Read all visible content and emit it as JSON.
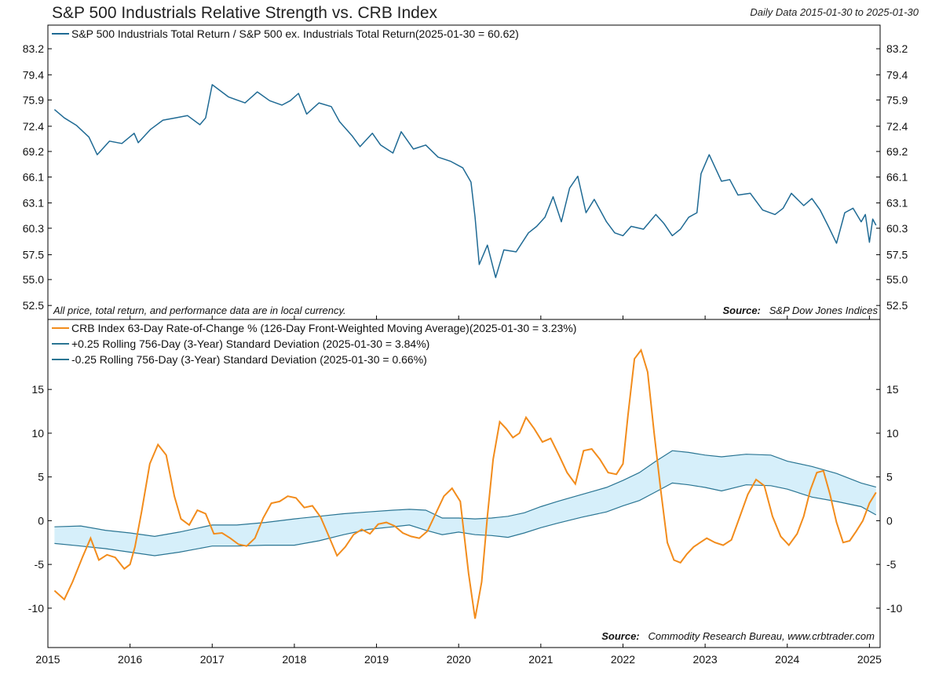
{
  "header": {
    "title": "S&P 500 Industrials Relative Strength vs. CRB Index",
    "date_range": "Daily Data 2015-01-30 to 2025-01-30"
  },
  "top_panel": {
    "note": "All price, total return, and performance data are in local currency.",
    "source_label": "Source:",
    "source_text": "S&P Dow Jones Indices"
  },
  "bottom_panel": {
    "source_label": "Source:",
    "source_text": "Commodity Research Bureau, www.crbtrader.com"
  },
  "colors": {
    "relative_strength": "#1f6a94",
    "crb_roc": "#f28c1c",
    "band_line": "#2a7593",
    "band_fill": "#d6effa"
  },
  "chart_data": [
    {
      "type": "line",
      "x_axis": "date",
      "y_scale": "log",
      "ylim": [
        51.2,
        86.8
      ],
      "y_ticks": [
        "52.5",
        "55.0",
        "57.5",
        "60.3",
        "63.1",
        "66.1",
        "69.2",
        "72.4",
        "75.9",
        "79.4",
        "83.2"
      ],
      "grid": false,
      "legend_position": "top-left",
      "series": [
        {
          "name": "S&P 500 Industrials Total Return / S&P 500 ex. Industrials Total Return(2025-01-30 = 60.62)",
          "x": [
            2015.08,
            2015.2,
            2015.35,
            2015.5,
            2015.6,
            2015.75,
            2015.9,
            2016.05,
            2016.1,
            2016.25,
            2016.4,
            2016.55,
            2016.7,
            2016.85,
            2016.92,
            2017.0,
            2017.2,
            2017.4,
            2017.55,
            2017.7,
            2017.85,
            2017.95,
            2018.05,
            2018.15,
            2018.3,
            2018.45,
            2018.55,
            2018.7,
            2018.8,
            2018.95,
            2019.05,
            2019.2,
            2019.3,
            2019.45,
            2019.6,
            2019.75,
            2019.9,
            2020.05,
            2020.15,
            2020.2,
            2020.25,
            2020.35,
            2020.45,
            2020.55,
            2020.7,
            2020.85,
            2020.95,
            2021.05,
            2021.15,
            2021.25,
            2021.35,
            2021.45,
            2021.55,
            2021.65,
            2021.8,
            2021.9,
            2022.0,
            2022.1,
            2022.25,
            2022.4,
            2022.5,
            2022.6,
            2022.7,
            2022.8,
            2022.9,
            2022.95,
            2023.05,
            2023.2,
            2023.3,
            2023.4,
            2023.55,
            2023.7,
            2023.85,
            2023.95,
            2024.05,
            2024.2,
            2024.3,
            2024.4,
            2024.5,
            2024.6,
            2024.7,
            2024.8,
            2024.9,
            2024.95,
            2025.0,
            2025.04,
            2025.08
          ],
          "y": [
            74.6,
            73.5,
            72.5,
            71.0,
            68.8,
            70.5,
            70.2,
            71.5,
            70.3,
            72.0,
            73.2,
            73.5,
            73.8,
            72.6,
            73.5,
            78.0,
            76.3,
            75.5,
            77.0,
            75.8,
            75.2,
            75.8,
            76.8,
            74.0,
            75.5,
            75.0,
            73.0,
            71.2,
            69.8,
            71.5,
            70.0,
            69.0,
            71.7,
            69.5,
            70.0,
            68.5,
            68.0,
            67.2,
            65.5,
            61.5,
            56.5,
            58.5,
            55.2,
            58.0,
            57.8,
            59.8,
            60.5,
            61.5,
            63.8,
            61.0,
            64.8,
            66.2,
            62.0,
            63.5,
            61.0,
            59.8,
            59.5,
            60.5,
            60.2,
            61.8,
            60.8,
            59.5,
            60.2,
            61.5,
            62.0,
            66.5,
            68.8,
            65.6,
            65.8,
            64.0,
            64.2,
            62.3,
            61.8,
            62.5,
            64.2,
            62.8,
            63.6,
            62.3,
            60.5,
            58.7,
            62.0,
            62.5,
            61.0,
            61.8,
            58.8,
            61.3,
            60.62
          ]
        }
      ]
    },
    {
      "type": "line",
      "x_axis": "date",
      "x_ticks": [
        "2015",
        "2016",
        "2017",
        "2018",
        "2019",
        "2020",
        "2021",
        "2022",
        "2023",
        "2024",
        "2025"
      ],
      "ylim": [
        -14.5,
        23
      ],
      "y_ticks": [
        "-10",
        "-5",
        "0",
        "5",
        "10",
        "15"
      ],
      "grid": false,
      "legend_position": "top-left",
      "band_between": [
        "+0.25 Rolling 756-Day (3-Year) Standard Deviation (2025-01-30 = 3.84%)",
        "-0.25 Rolling 756-Day (3-Year) Standard Deviation (2025-01-30 = 0.66%)"
      ],
      "series": [
        {
          "name": "CRB Index 63-Day Rate-of-Change % (126-Day Front-Weighted Moving Average)(2025-01-30 = 3.23%)",
          "x": [
            2015.08,
            2015.2,
            2015.3,
            2015.42,
            2015.52,
            2015.62,
            2015.72,
            2015.82,
            2015.93,
            2016.0,
            2016.06,
            2016.14,
            2016.24,
            2016.34,
            2016.44,
            2016.54,
            2016.62,
            2016.72,
            2016.82,
            2016.92,
            2017.02,
            2017.12,
            2017.22,
            2017.32,
            2017.42,
            2017.52,
            2017.62,
            2017.72,
            2017.82,
            2017.92,
            2018.02,
            2018.12,
            2018.22,
            2018.32,
            2018.42,
            2018.52,
            2018.62,
            2018.72,
            2018.82,
            2018.92,
            2019.02,
            2019.12,
            2019.22,
            2019.32,
            2019.42,
            2019.52,
            2019.62,
            2019.72,
            2019.82,
            2019.92,
            2020.02,
            2020.12,
            2020.2,
            2020.28,
            2020.35,
            2020.42,
            2020.5,
            2020.58,
            2020.66,
            2020.74,
            2020.82,
            2020.92,
            2021.02,
            2021.12,
            2021.22,
            2021.32,
            2021.42,
            2021.52,
            2021.62,
            2021.72,
            2021.82,
            2021.92,
            2022.0,
            2022.06,
            2022.14,
            2022.22,
            2022.3,
            2022.38,
            2022.46,
            2022.54,
            2022.62,
            2022.7,
            2022.78,
            2022.86,
            2022.94,
            2023.02,
            2023.12,
            2023.22,
            2023.32,
            2023.42,
            2023.52,
            2023.62,
            2023.72,
            2023.82,
            2023.92,
            2024.02,
            2024.12,
            2024.2,
            2024.28,
            2024.36,
            2024.44,
            2024.52,
            2024.6,
            2024.68,
            2024.76,
            2024.84,
            2024.92,
            2025.0,
            2025.08
          ],
          "y": [
            -8.0,
            -9.0,
            -7.0,
            -4.2,
            -2.0,
            -4.5,
            -3.9,
            -4.2,
            -5.5,
            -5.0,
            -3.0,
            1.0,
            6.5,
            8.7,
            7.5,
            2.8,
            0.2,
            -0.5,
            1.2,
            0.8,
            -1.5,
            -1.4,
            -2.0,
            -2.7,
            -2.9,
            -2.0,
            0.3,
            2.0,
            2.2,
            2.8,
            2.6,
            1.5,
            1.7,
            0.4,
            -1.8,
            -4.0,
            -3.0,
            -1.6,
            -1.0,
            -1.5,
            -0.4,
            -0.2,
            -0.6,
            -1.4,
            -1.8,
            -2.0,
            -1.2,
            0.8,
            2.8,
            3.7,
            2.2,
            -6.0,
            -11.2,
            -7.0,
            0.5,
            7.0,
            11.3,
            10.5,
            9.5,
            10.0,
            11.8,
            10.5,
            9.0,
            9.4,
            7.5,
            5.5,
            4.2,
            8.0,
            8.2,
            7.0,
            5.5,
            5.3,
            6.5,
            12.0,
            18.5,
            19.5,
            17.0,
            10.0,
            3.5,
            -2.5,
            -4.5,
            -4.8,
            -3.8,
            -3.0,
            -2.5,
            -2.0,
            -2.5,
            -2.8,
            -2.2,
            0.4,
            3.0,
            4.7,
            4.0,
            0.5,
            -1.8,
            -2.8,
            -1.5,
            0.5,
            3.5,
            5.5,
            5.7,
            3.0,
            -0.2,
            -2.5,
            -2.3,
            -1.2,
            0.0,
            2.0,
            3.23
          ]
        },
        {
          "name": "+0.25 Rolling 756-Day (3-Year) Standard Deviation (2025-01-30 = 3.84%)",
          "x": [
            2015.08,
            2015.4,
            2015.7,
            2016.0,
            2016.3,
            2016.6,
            2017.0,
            2017.3,
            2017.65,
            2018.0,
            2018.3,
            2018.6,
            2018.9,
            2019.2,
            2019.4,
            2019.6,
            2019.8,
            2020.0,
            2020.2,
            2020.4,
            2020.6,
            2020.8,
            2021.0,
            2021.2,
            2021.5,
            2021.8,
            2022.0,
            2022.2,
            2022.4,
            2022.6,
            2022.8,
            2023.0,
            2023.2,
            2023.5,
            2023.8,
            2024.0,
            2024.3,
            2024.6,
            2024.9,
            2025.08
          ],
          "y": [
            -0.7,
            -0.6,
            -1.1,
            -1.4,
            -1.8,
            -1.3,
            -0.5,
            -0.5,
            -0.2,
            0.2,
            0.5,
            0.8,
            1.0,
            1.2,
            1.3,
            1.2,
            0.3,
            0.3,
            0.2,
            0.3,
            0.5,
            0.9,
            1.6,
            2.2,
            3.0,
            3.8,
            4.6,
            5.5,
            6.8,
            8.0,
            7.8,
            7.5,
            7.3,
            7.6,
            7.5,
            6.8,
            6.2,
            5.4,
            4.3,
            3.84
          ]
        },
        {
          "name": "-0.25 Rolling 756-Day (3-Year) Standard Deviation (2025-01-30 = 0.66%)",
          "x": [
            2015.08,
            2015.4,
            2015.7,
            2016.0,
            2016.3,
            2016.6,
            2017.0,
            2017.3,
            2017.65,
            2018.0,
            2018.3,
            2018.6,
            2018.9,
            2019.2,
            2019.4,
            2019.6,
            2019.8,
            2020.0,
            2020.2,
            2020.4,
            2020.6,
            2020.8,
            2021.0,
            2021.2,
            2021.5,
            2021.8,
            2022.0,
            2022.2,
            2022.4,
            2022.6,
            2022.8,
            2023.0,
            2023.2,
            2023.5,
            2023.8,
            2024.0,
            2024.3,
            2024.6,
            2024.9,
            2025.08
          ],
          "y": [
            -2.6,
            -2.9,
            -3.2,
            -3.6,
            -4.0,
            -3.6,
            -2.9,
            -2.9,
            -2.8,
            -2.8,
            -2.3,
            -1.6,
            -1.0,
            -0.7,
            -0.5,
            -1.1,
            -1.6,
            -1.3,
            -1.6,
            -1.7,
            -1.9,
            -1.4,
            -0.8,
            -0.3,
            0.4,
            1.0,
            1.7,
            2.3,
            3.3,
            4.3,
            4.1,
            3.8,
            3.4,
            4.1,
            4.0,
            3.6,
            2.7,
            2.2,
            1.6,
            0.66
          ]
        }
      ]
    }
  ]
}
